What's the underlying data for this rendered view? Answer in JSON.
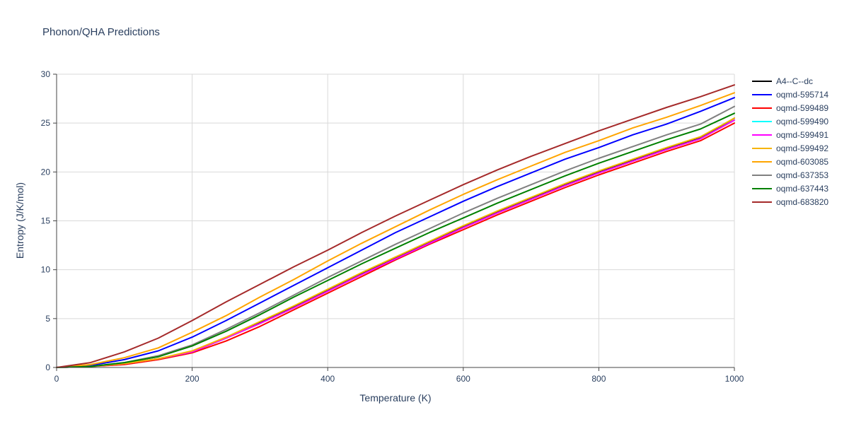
{
  "chart_data": {
    "type": "line",
    "title": "Phonon/QHA Predictions",
    "xlabel": "Temperature (K)",
    "ylabel": "Entropy (J/K/mol)",
    "xlim": [
      0,
      1000
    ],
    "ylim": [
      0,
      30
    ],
    "xticks": [
      "0",
      "200",
      "400",
      "600",
      "800",
      "1000"
    ],
    "yticks": [
      "0",
      "5",
      "10",
      "15",
      "20",
      "25",
      "30"
    ],
    "grid": true,
    "legend_position": "right",
    "x": [
      0,
      50,
      100,
      150,
      200,
      250,
      300,
      350,
      400,
      450,
      500,
      550,
      600,
      650,
      700,
      750,
      800,
      850,
      900,
      950,
      1000
    ],
    "series": [
      {
        "name": "A4--C--dc",
        "color": "#000000",
        "values": [
          0,
          0.1,
          0.4,
          0.9,
          1.6,
          3.0,
          4.6,
          6.2,
          7.9,
          9.6,
          11.2,
          12.8,
          14.4,
          15.9,
          17.3,
          18.7,
          20.0,
          21.2,
          22.4,
          23.5,
          25.5
        ]
      },
      {
        "name": "oqmd-595714",
        "color": "#0000ff",
        "values": [
          0,
          0.2,
          0.8,
          1.7,
          3.1,
          4.8,
          6.6,
          8.4,
          10.2,
          12.0,
          13.8,
          15.4,
          17.0,
          18.5,
          19.9,
          21.3,
          22.5,
          23.8,
          24.9,
          26.2,
          27.6
        ]
      },
      {
        "name": "oqmd-599489",
        "color": "#ff0000",
        "values": [
          0,
          0.1,
          0.3,
          0.8,
          1.5,
          2.7,
          4.2,
          5.9,
          7.6,
          9.3,
          11.0,
          12.6,
          14.1,
          15.6,
          17.0,
          18.4,
          19.7,
          20.9,
          22.1,
          23.2,
          25.0
        ]
      },
      {
        "name": "oqmd-599490",
        "color": "#00ffff",
        "values": [
          0,
          0.1,
          0.4,
          0.9,
          1.6,
          3.0,
          4.5,
          6.1,
          7.8,
          9.5,
          11.1,
          12.7,
          14.3,
          15.8,
          17.2,
          18.6,
          19.9,
          21.1,
          22.3,
          23.4,
          25.3
        ]
      },
      {
        "name": "oqmd-599491",
        "color": "#ff00ff",
        "values": [
          0,
          0.1,
          0.4,
          0.9,
          1.6,
          3.0,
          4.5,
          6.1,
          7.8,
          9.5,
          11.1,
          12.7,
          14.3,
          15.8,
          17.2,
          18.6,
          19.9,
          21.1,
          22.3,
          23.4,
          25.3
        ]
      },
      {
        "name": "oqmd-599492",
        "color": "#f6b400",
        "values": [
          0,
          0.1,
          0.4,
          0.9,
          1.7,
          3.1,
          4.7,
          6.3,
          8.0,
          9.7,
          11.3,
          12.9,
          14.5,
          16.0,
          17.4,
          18.8,
          20.1,
          21.3,
          22.5,
          23.6,
          25.5
        ]
      },
      {
        "name": "oqmd-603085",
        "color": "#ffa500",
        "values": [
          0,
          0.3,
          1.0,
          2.0,
          3.6,
          5.3,
          7.2,
          9.0,
          10.9,
          12.7,
          14.4,
          16.1,
          17.7,
          19.2,
          20.6,
          22.0,
          23.2,
          24.5,
          25.6,
          26.8,
          28.1
        ]
      },
      {
        "name": "oqmd-637353",
        "color": "#808080",
        "values": [
          0,
          0.1,
          0.5,
          1.2,
          2.3,
          3.9,
          5.6,
          7.4,
          9.2,
          10.9,
          12.6,
          14.2,
          15.8,
          17.3,
          18.7,
          20.1,
          21.4,
          22.6,
          23.8,
          24.9,
          26.7
        ]
      },
      {
        "name": "oqmd-637443",
        "color": "#008000",
        "values": [
          0,
          0.1,
          0.5,
          1.1,
          2.2,
          3.7,
          5.4,
          7.2,
          8.9,
          10.6,
          12.2,
          13.8,
          15.3,
          16.8,
          18.2,
          19.6,
          20.9,
          22.1,
          23.3,
          24.4,
          26.0
        ]
      },
      {
        "name": "oqmd-683820",
        "color": "#a52a2a",
        "values": [
          0,
          0.5,
          1.6,
          3.0,
          4.8,
          6.7,
          8.5,
          10.3,
          12.0,
          13.8,
          15.5,
          17.1,
          18.7,
          20.2,
          21.6,
          22.9,
          24.2,
          25.4,
          26.6,
          27.7,
          28.9
        ]
      }
    ]
  }
}
